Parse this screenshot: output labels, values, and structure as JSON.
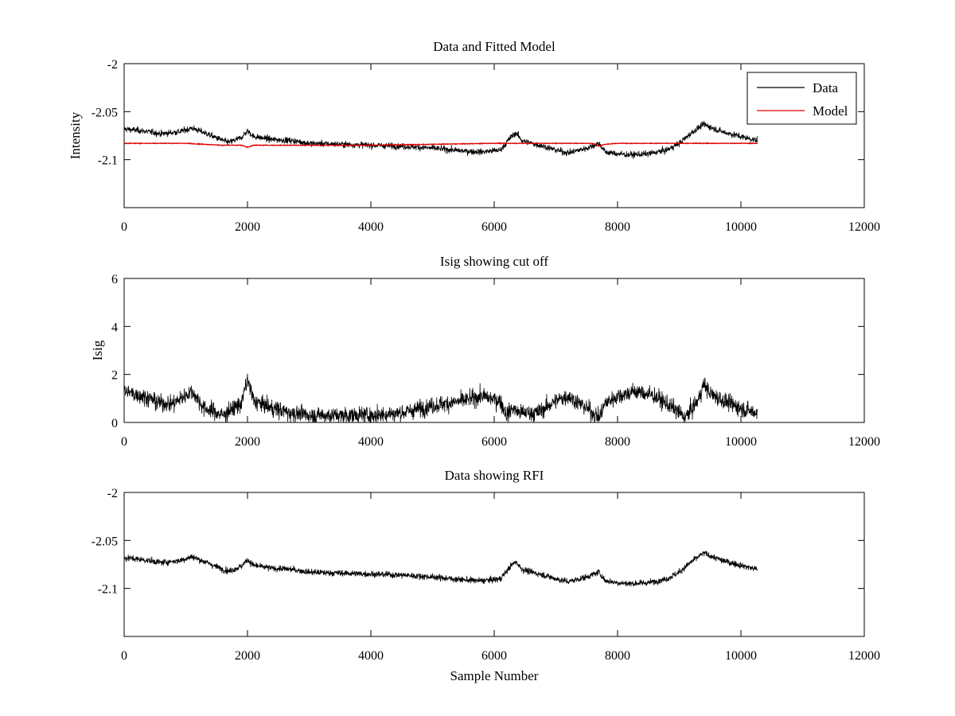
{
  "figure": {
    "background": "#ffffff"
  },
  "chart_data": [
    {
      "type": "line",
      "title": "Data and Fitted Model",
      "xlabel": "",
      "ylabel": "Intensity",
      "xlim": [
        0,
        12000
      ],
      "ylim": [
        -2.15,
        -2.0
      ],
      "xticks": [
        0,
        2000,
        4000,
        6000,
        8000,
        10000,
        12000
      ],
      "xtick_labels": [
        "0",
        "2000",
        "4000",
        "6000",
        "8000",
        "10000",
        "12000"
      ],
      "yticks": [
        -2.0,
        -2.05,
        -2.1
      ],
      "ytick_labels": [
        "-2",
        "-2.05",
        "-2.1"
      ],
      "legend": {
        "position": "top-right",
        "entries": [
          "Data",
          "Model"
        ]
      },
      "series": [
        {
          "name": "Data",
          "color": "#000000",
          "noise": 0.0042,
          "x": [
            0,
            300,
            600,
            900,
            1100,
            1300,
            1600,
            1700,
            1900,
            2000,
            2100,
            2400,
            2700,
            3000,
            3500,
            4000,
            4500,
            5000,
            5500,
            5800,
            6100,
            6250,
            6350,
            6450,
            6600,
            6800,
            7000,
            7200,
            7500,
            7700,
            7800,
            8000,
            8200,
            8500,
            8800,
            9000,
            9200,
            9400,
            9500,
            9700,
            10000,
            10270
          ],
          "values": [
            -2.068,
            -2.07,
            -2.073,
            -2.071,
            -2.067,
            -2.072,
            -2.08,
            -2.082,
            -2.077,
            -2.07,
            -2.076,
            -2.079,
            -2.08,
            -2.083,
            -2.084,
            -2.085,
            -2.086,
            -2.088,
            -2.091,
            -2.092,
            -2.09,
            -2.078,
            -2.072,
            -2.08,
            -2.083,
            -2.086,
            -2.09,
            -2.093,
            -2.088,
            -2.083,
            -2.092,
            -2.094,
            -2.095,
            -2.094,
            -2.09,
            -2.083,
            -2.072,
            -2.063,
            -2.066,
            -2.071,
            -2.076,
            -2.08
          ]
        },
        {
          "name": "Model",
          "color": "#dd0000",
          "noise": 0.0004,
          "x": [
            0,
            600,
            1000,
            1600,
            1900,
            2000,
            2100,
            2500,
            3000,
            4000,
            5000,
            6000,
            6300,
            7000,
            7600,
            7700,
            7800,
            8000,
            9000,
            10270
          ],
          "values": [
            -2.083,
            -2.083,
            -2.083,
            -2.085,
            -2.085,
            -2.087,
            -2.085,
            -2.085,
            -2.085,
            -2.085,
            -2.084,
            -2.083,
            -2.083,
            -2.083,
            -2.083,
            -2.086,
            -2.084,
            -2.083,
            -2.083,
            -2.083
          ]
        }
      ]
    },
    {
      "type": "line",
      "title": "Isig showing cut off",
      "xlabel": "",
      "ylabel": "Isig",
      "xlim": [
        0,
        12000
      ],
      "ylim": [
        0,
        6
      ],
      "xticks": [
        0,
        2000,
        4000,
        6000,
        8000,
        10000,
        12000
      ],
      "xtick_labels": [
        "0",
        "2000",
        "4000",
        "6000",
        "8000",
        "10000",
        "12000"
      ],
      "yticks": [
        0,
        2,
        4,
        6
      ],
      "ytick_labels": [
        "0",
        "2",
        "4",
        "6"
      ],
      "series": [
        {
          "name": "Isig",
          "color": "#000000",
          "noise": 0.45,
          "floor": 0,
          "x": [
            0,
            300,
            600,
            800,
            1100,
            1300,
            1600,
            1900,
            2000,
            2100,
            2400,
            2700,
            3000,
            3500,
            4000,
            4500,
            5000,
            5500,
            5800,
            6100,
            6200,
            6300,
            6400,
            6700,
            7000,
            7200,
            7500,
            7700,
            7800,
            8000,
            8300,
            8600,
            8900,
            9100,
            9300,
            9400,
            9500,
            9800,
            10100,
            10270
          ],
          "values": [
            1.3,
            1.1,
            0.8,
            0.8,
            1.3,
            0.6,
            0.3,
            0.8,
            1.8,
            0.9,
            0.6,
            0.4,
            0.3,
            0.3,
            0.3,
            0.4,
            0.7,
            0.9,
            1.1,
            0.9,
            0.3,
            0.6,
            0.4,
            0.4,
            0.9,
            1.1,
            0.6,
            0.2,
            0.8,
            1.1,
            1.3,
            1.1,
            0.6,
            0.2,
            0.9,
            1.6,
            1.2,
            0.8,
            0.5,
            0.4
          ]
        }
      ]
    },
    {
      "type": "line",
      "title": "Data showing RFI",
      "xlabel": "Sample Number",
      "ylabel": "",
      "xlim": [
        0,
        12000
      ],
      "ylim": [
        -2.15,
        -2.0
      ],
      "xticks": [
        0,
        2000,
        4000,
        6000,
        8000,
        10000,
        12000
      ],
      "xtick_labels": [
        "0",
        "2000",
        "4000",
        "6000",
        "8000",
        "10000",
        "12000"
      ],
      "yticks": [
        -2.0,
        -2.05,
        -2.1
      ],
      "ytick_labels": [
        "-2",
        "-2.05",
        "-2.1"
      ],
      "series": [
        {
          "name": "Data",
          "color": "#000000",
          "noise": 0.0042,
          "x": [
            0,
            300,
            600,
            900,
            1100,
            1300,
            1600,
            1700,
            1900,
            2000,
            2100,
            2400,
            2700,
            3000,
            3500,
            4000,
            4500,
            5000,
            5500,
            5800,
            6100,
            6250,
            6350,
            6450,
            6600,
            6800,
            7000,
            7200,
            7500,
            7700,
            7800,
            8000,
            8200,
            8500,
            8800,
            9000,
            9200,
            9400,
            9500,
            9700,
            10000,
            10270
          ],
          "values": [
            -2.068,
            -2.07,
            -2.073,
            -2.071,
            -2.067,
            -2.072,
            -2.08,
            -2.082,
            -2.077,
            -2.07,
            -2.076,
            -2.079,
            -2.08,
            -2.083,
            -2.084,
            -2.085,
            -2.086,
            -2.088,
            -2.091,
            -2.092,
            -2.09,
            -2.078,
            -2.072,
            -2.08,
            -2.083,
            -2.086,
            -2.09,
            -2.093,
            -2.088,
            -2.083,
            -2.092,
            -2.094,
            -2.095,
            -2.094,
            -2.09,
            -2.083,
            -2.072,
            -2.063,
            -2.066,
            -2.071,
            -2.076,
            -2.08
          ]
        }
      ]
    }
  ]
}
